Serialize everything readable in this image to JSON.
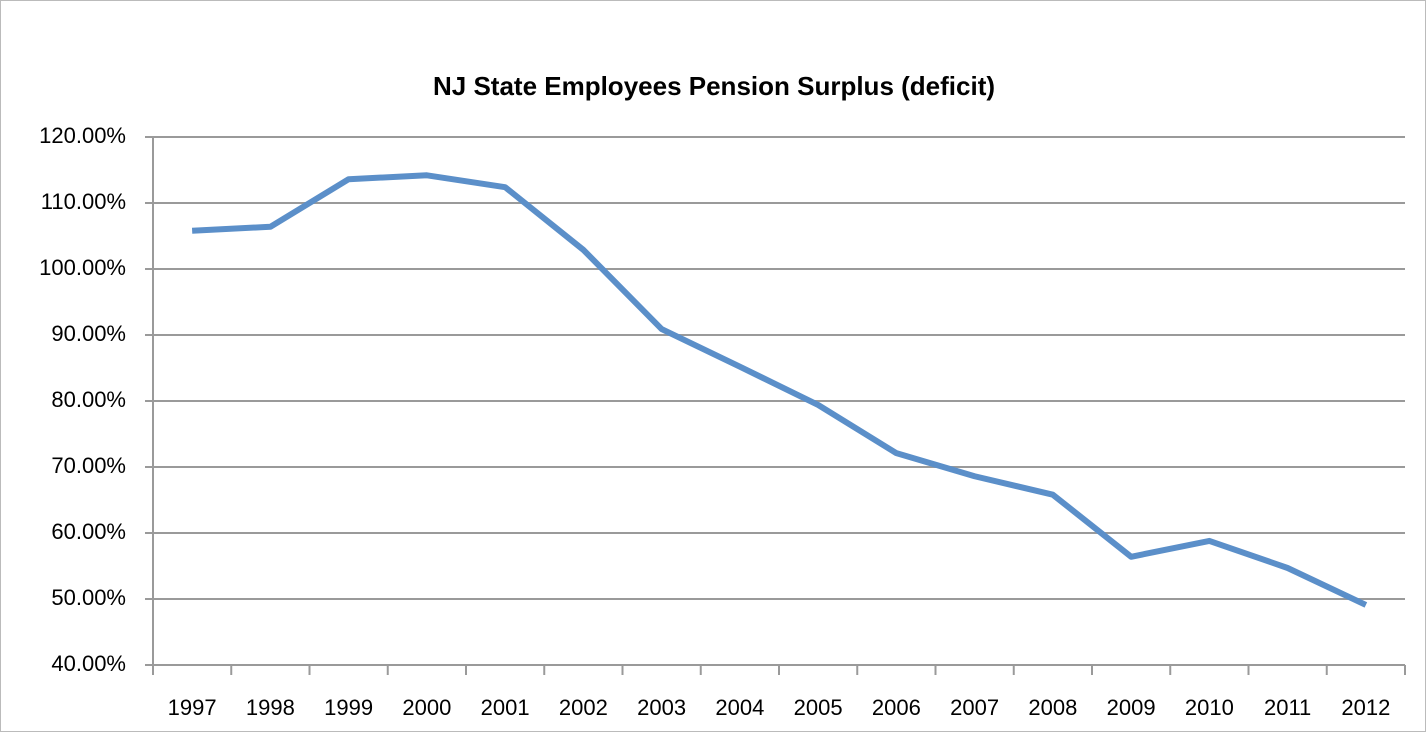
{
  "chart_data": {
    "type": "line",
    "title": "NJ State Employees Pension Surplus (deficit)",
    "categories": [
      "1997",
      "1998",
      "1999",
      "2000",
      "2001",
      "2002",
      "2003",
      "2004",
      "2005",
      "2006",
      "2007",
      "2008",
      "2009",
      "2010",
      "2011",
      "2012"
    ],
    "values": [
      105.8,
      106.4,
      113.6,
      114.2,
      112.4,
      102.9,
      90.9,
      85.2,
      79.4,
      72.1,
      68.6,
      65.8,
      56.4,
      58.8,
      54.7,
      49.1
    ],
    "color": "#5b8fc9",
    "ylim": [
      40,
      120
    ],
    "yticks": [
      {
        "value": 40,
        "label": "40.00%"
      },
      {
        "value": 50,
        "label": "50.00%"
      },
      {
        "value": 60,
        "label": "60.00%"
      },
      {
        "value": 70,
        "label": "70.00%"
      },
      {
        "value": 80,
        "label": "80.00%"
      },
      {
        "value": 90,
        "label": "90.00%"
      },
      {
        "value": 100,
        "label": "100.00%"
      },
      {
        "value": 110,
        "label": "110.00%"
      },
      {
        "value": 120,
        "label": "120.00%"
      }
    ],
    "grid": true
  }
}
